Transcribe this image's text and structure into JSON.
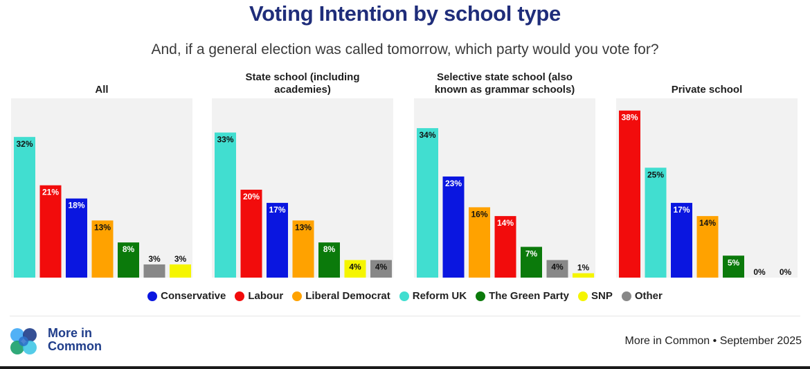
{
  "title": "Voting Intention by school type",
  "subtitle": "And, if a general election was called tomorrow, which party would you vote for?",
  "colors": {
    "Conservative": "#0a16e0",
    "Labour": "#f20c0c",
    "Liberal Democrat": "#ffa200",
    "Reform UK": "#41ded0",
    "The Green Party": "#0b7a0b",
    "SNP": "#f5f500",
    "Other": "#888888",
    "panel_bg": "#f2f2f2",
    "title": "#1f2d7a"
  },
  "legend": [
    {
      "label": "Conservative",
      "color": "#0a16e0"
    },
    {
      "label": "Labour",
      "color": "#f20c0c"
    },
    {
      "label": "Liberal Democrat",
      "color": "#ffa200"
    },
    {
      "label": "Reform UK",
      "color": "#41ded0"
    },
    {
      "label": "The Green Party",
      "color": "#0b7a0b"
    },
    {
      "label": "SNP",
      "color": "#f5f500"
    },
    {
      "label": "Other",
      "color": "#888888"
    }
  ],
  "chart_data": [
    {
      "type": "bar",
      "title": "All",
      "ylim": [
        0,
        40
      ],
      "categories": [
        "Reform UK",
        "Labour",
        "Conservative",
        "Liberal Democrat",
        "The Green Party",
        "Other",
        "SNP"
      ],
      "values": [
        32,
        21,
        18,
        13,
        8,
        3,
        3
      ],
      "labels": [
        "32%",
        "21%",
        "18%",
        "13%",
        "8%",
        "3%",
        "3%"
      ]
    },
    {
      "type": "bar",
      "title": "State school (including academies)",
      "title_lines": [
        "State school (including",
        "academies)"
      ],
      "ylim": [
        0,
        40
      ],
      "categories": [
        "Reform UK",
        "Labour",
        "Conservative",
        "Liberal Democrat",
        "The Green Party",
        "SNP",
        "Other"
      ],
      "values": [
        33,
        20,
        17,
        13,
        8,
        4,
        4
      ],
      "labels": [
        "33%",
        "20%",
        "17%",
        "13%",
        "8%",
        "4%",
        "4%"
      ]
    },
    {
      "type": "bar",
      "title": "Selective state school (also known as grammar schools)",
      "title_lines": [
        "Selective state school (also",
        "known as grammar schools)"
      ],
      "ylim": [
        0,
        40
      ],
      "categories": [
        "Reform UK",
        "Conservative",
        "Liberal Democrat",
        "Labour",
        "The Green Party",
        "Other",
        "SNP"
      ],
      "values": [
        34,
        23,
        16,
        14,
        7,
        4,
        1
      ],
      "labels": [
        "34%",
        "23%",
        "16%",
        "14%",
        "7%",
        "4%",
        "1%"
      ]
    },
    {
      "type": "bar",
      "title": "Private school",
      "ylim": [
        0,
        40
      ],
      "categories": [
        "Labour",
        "Reform UK",
        "Conservative",
        "Liberal Democrat",
        "The Green Party",
        "SNP",
        "Other"
      ],
      "values": [
        38,
        25,
        17,
        14,
        5,
        0,
        0
      ],
      "labels": [
        "38%",
        "25%",
        "17%",
        "14%",
        "5%",
        "0%",
        "0%"
      ]
    }
  ],
  "brand": {
    "line1": "More in",
    "line2": "Common"
  },
  "source": "More in Common • September 2025"
}
